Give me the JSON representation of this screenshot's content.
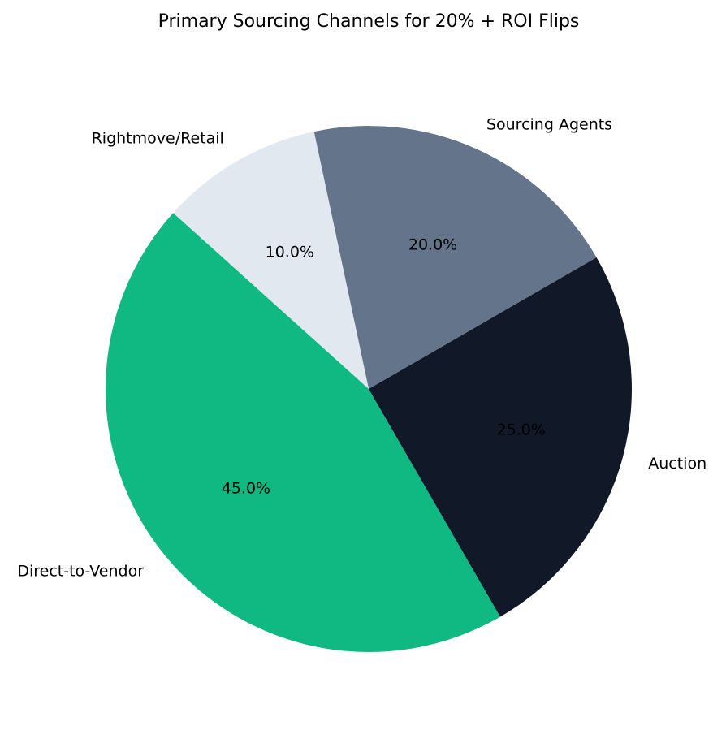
{
  "chart_data": {
    "type": "pie",
    "title": "Primary Sourcing Channels for 20% + ROI Flips",
    "labels": [
      "Sourcing Agents",
      "Rightmove/Retail",
      "Direct-to-Vendor",
      "Auction"
    ],
    "values": [
      20.0,
      10.0,
      45.0,
      25.0
    ],
    "percent_labels": [
      "20.0%",
      "10.0%",
      "45.0%",
      "25.0%"
    ],
    "colors": [
      "#64748b",
      "#e2e8f0",
      "#10b981",
      "#111827"
    ],
    "start_angle_deg": 30,
    "direction": "counterclockwise",
    "legend": "none"
  }
}
